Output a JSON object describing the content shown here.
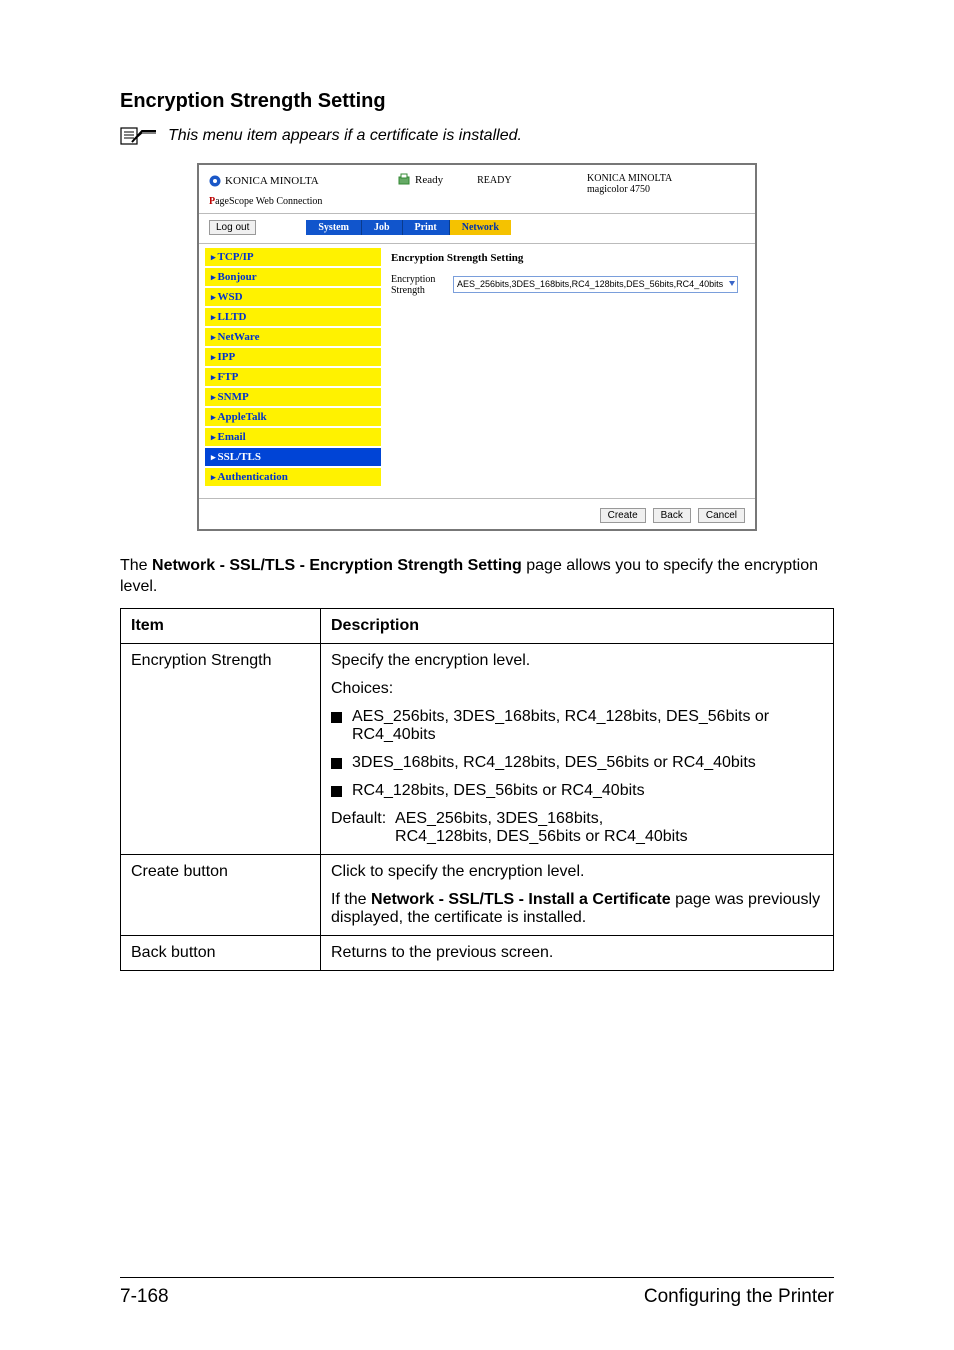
{
  "heading": "Encryption Strength Setting",
  "note": "This menu item appears if a certificate is installed.",
  "screenshot": {
    "brand": "KONICA MINOLTA",
    "pagescope": "PageScope Web Connection",
    "readyIcon": "Ready",
    "readyState": "READY",
    "modelBrand": "KONICA MINOLTA",
    "modelName": "magicolor 4750",
    "logout": "Log out",
    "tabs": [
      "System",
      "Job",
      "Print",
      "Network"
    ],
    "sidebar": [
      "TCP/IP",
      "Bonjour",
      "WSD",
      "LLTD",
      "NetWare",
      "IPP",
      "FTP",
      "SNMP",
      "AppleTalk",
      "Email",
      "SSL/TLS",
      "Authentication"
    ],
    "selectedSidebarIndex": 10,
    "mainTitle": "Encryption Strength Setting",
    "formLabel": "Encryption Strength",
    "selectValue": "AES_256bits,3DES_168bits,RC4_128bits,DES_56bits,RC4_40bits",
    "footerButtons": [
      "Create",
      "Back",
      "Cancel"
    ]
  },
  "paragraph": {
    "pre": "The ",
    "bold": "Network - SSL/TLS - Encryption Strength Setting",
    "post": " page allows you to specify the encryption level."
  },
  "table": {
    "headers": [
      "Item",
      "Description"
    ],
    "row1": {
      "item": "Encryption Strength",
      "line1": "Specify the encryption level.",
      "line2": "Choices:",
      "bullets": [
        "AES_256bits, 3DES_168bits, RC4_128bits, DES_56bits or RC4_40bits",
        "3DES_168bits, RC4_128bits, DES_56bits or RC4_40bits",
        "RC4_128bits, DES_56bits or RC4_40bits"
      ],
      "defaultLabel": "Default:",
      "defaultLine1": "AES_256bits, 3DES_168bits,",
      "defaultLine2": "RC4_128bits, DES_56bits or RC4_40bits"
    },
    "row2": {
      "item": "Create button",
      "line1": "Click to specify the encryption level.",
      "line2pre": "If the ",
      "line2bold": "Network - SSL/TLS - Install a Certificate",
      "line2post": " page was previously displayed, the certificate is installed."
    },
    "row3": {
      "item": "Back button",
      "line1": "Returns to the previous screen."
    }
  },
  "footer": {
    "left": "7-168",
    "right": "Configuring the Printer"
  }
}
